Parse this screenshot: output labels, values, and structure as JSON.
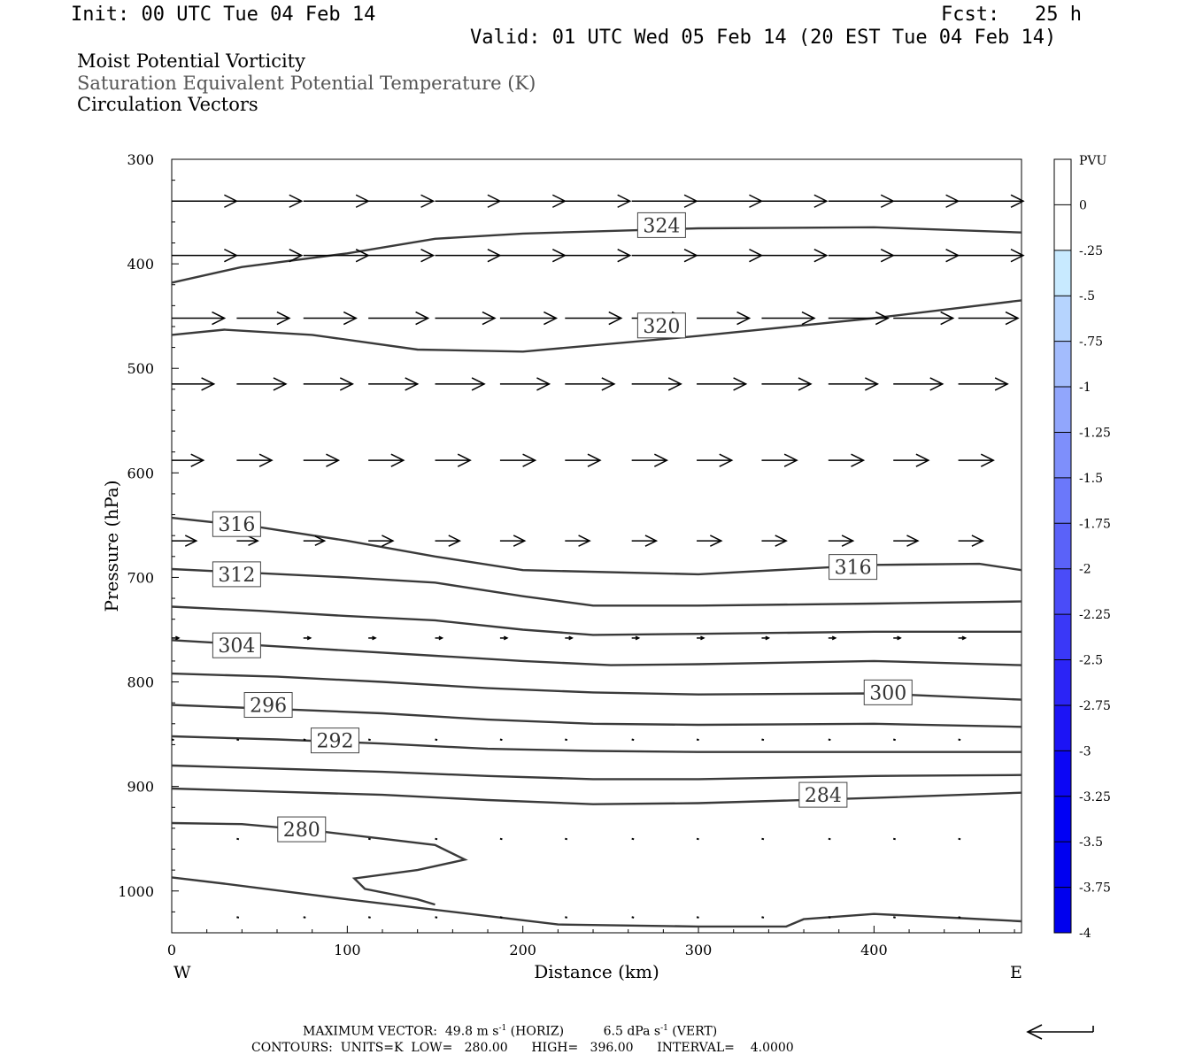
{
  "header": {
    "init": "Init: 00 UTC Tue 04 Feb 14",
    "fcst": "Fcst:   25 h",
    "valid": "Valid: 01 UTC Wed 05 Feb 14 (20 EST Tue 04 Feb 14)"
  },
  "titles": {
    "line1": "Moist Potential Vorticity",
    "line2": "Saturation Equivalent Potential Temperature (K)",
    "line3": "Circulation Vectors"
  },
  "footer": {
    "max_vector_label": "MAXIMUM VECTOR:",
    "max_vector_horiz": "49.8 m s",
    "horiz_tag": "(HORIZ)",
    "max_vector_vert": "6.5 dPa s",
    "vert_tag": "(VERT)",
    "exponent": "-1",
    "contours": "CONTOURS:  UNITS=K  LOW=   280.00      HIGH=   396.00      INTERVAL=    4.0000"
  },
  "colors": {
    "contour": "#3a3a3a",
    "vector": "#000000",
    "label_text": "#333333",
    "colorbar": [
      "#ffffff",
      "#ffffff",
      "#c8eaff",
      "#b6d4fe",
      "#a3bcfd",
      "#91a6fc",
      "#7e8ffb",
      "#6b78fa",
      "#5a62f9",
      "#4a4cf8",
      "#3a38f7",
      "#2b24f6",
      "#1c14f5",
      "#0c06f5",
      "#0000f5",
      "#0000f0",
      "#0000ee"
    ]
  },
  "chart_data": {
    "type": "cross-section",
    "title": "Moist Potential Vorticity",
    "xlabel": "Distance (km)",
    "ylabel": "Pressure (hPa)",
    "xlim": [
      0,
      484
    ],
    "ylim": [
      300,
      1040
    ],
    "y_inverted": true,
    "x_ticks": [
      "0",
      "100",
      "200",
      "300",
      "400"
    ],
    "x_tick_values": [
      0,
      100,
      200,
      300,
      400
    ],
    "y_ticks": [
      "300",
      "400",
      "500",
      "600",
      "700",
      "800",
      "900",
      "1000"
    ],
    "y_tick_values": [
      300,
      400,
      500,
      600,
      700,
      800,
      900,
      1000
    ],
    "x_end_labels": {
      "left": "W",
      "right": "E"
    },
    "colorbar": {
      "unit": "PVU",
      "labels": [
        "0",
        "-.25",
        "-.5",
        "-.75",
        "-1",
        "-1.25",
        "-1.5",
        "-1.75",
        "-2",
        "-2.25",
        "-2.5",
        "-2.75",
        "-3",
        "-3.25",
        "-3.5",
        "-3.75",
        "-4"
      ]
    },
    "contours": [
      {
        "level": 324,
        "label": "324",
        "label_at": [
          279,
          363
        ],
        "points": [
          [
            0,
            418
          ],
          [
            40,
            403
          ],
          [
            100,
            390
          ],
          [
            150,
            376
          ],
          [
            200,
            371
          ],
          [
            300,
            366
          ],
          [
            400,
            365
          ],
          [
            484,
            370
          ]
        ]
      },
      {
        "level": 320,
        "label": "320",
        "label_at": [
          279,
          459
        ],
        "points": [
          [
            0,
            468
          ],
          [
            30,
            463
          ],
          [
            80,
            468
          ],
          [
            140,
            482
          ],
          [
            200,
            484
          ],
          [
            260,
            475
          ],
          [
            300,
            469
          ],
          [
            400,
            452
          ],
          [
            484,
            435
          ]
        ]
      },
      {
        "level": 316,
        "label": "316",
        "label_at": [
          37,
          649
        ],
        "points": [
          [
            0,
            643
          ],
          [
            50,
            652
          ],
          [
            100,
            665
          ],
          [
            150,
            680
          ],
          [
            200,
            693
          ],
          [
            300,
            697
          ],
          [
            400,
            688
          ],
          [
            460,
            687
          ],
          [
            484,
            693
          ]
        ]
      },
      {
        "level": 316,
        "label": "316",
        "label_at": [
          388,
          690
        ],
        "points": []
      },
      {
        "level": 312,
        "label": "312",
        "label_at": [
          37,
          697
        ],
        "points": [
          [
            0,
            692
          ],
          [
            50,
            696
          ],
          [
            100,
            700
          ],
          [
            150,
            705
          ],
          [
            200,
            718
          ],
          [
            240,
            727
          ],
          [
            300,
            727
          ],
          [
            400,
            725
          ],
          [
            484,
            723
          ]
        ]
      },
      {
        "level": 308,
        "label": "",
        "label_at": null,
        "points": [
          [
            0,
            728
          ],
          [
            50,
            732
          ],
          [
            100,
            737
          ],
          [
            150,
            741
          ],
          [
            200,
            750
          ],
          [
            240,
            755
          ],
          [
            300,
            754
          ],
          [
            400,
            752
          ],
          [
            484,
            752
          ]
        ]
      },
      {
        "level": 304,
        "label": "304",
        "label_at": [
          37,
          765
        ],
        "points": [
          [
            0,
            760
          ],
          [
            50,
            765
          ],
          [
            100,
            770
          ],
          [
            150,
            775
          ],
          [
            200,
            780
          ],
          [
            250,
            784
          ],
          [
            300,
            783
          ],
          [
            400,
            780
          ],
          [
            484,
            784
          ]
        ]
      },
      {
        "level": 300,
        "label": "300",
        "label_at": [
          408,
          810
        ],
        "points": [
          [
            0,
            792
          ],
          [
            60,
            795
          ],
          [
            120,
            800
          ],
          [
            180,
            806
          ],
          [
            240,
            810
          ],
          [
            300,
            812
          ],
          [
            400,
            811
          ],
          [
            484,
            817
          ]
        ]
      },
      {
        "level": 296,
        "label": "296",
        "label_at": [
          55,
          822
        ],
        "points": [
          [
            0,
            822
          ],
          [
            60,
            826
          ],
          [
            120,
            830
          ],
          [
            180,
            836
          ],
          [
            240,
            840
          ],
          [
            300,
            841
          ],
          [
            400,
            840
          ],
          [
            484,
            843
          ]
        ]
      },
      {
        "level": 292,
        "label": "292",
        "label_at": [
          93,
          856
        ],
        "points": [
          [
            0,
            852
          ],
          [
            60,
            855
          ],
          [
            120,
            859
          ],
          [
            180,
            864
          ],
          [
            240,
            866
          ],
          [
            300,
            867
          ],
          [
            400,
            867
          ],
          [
            484,
            867
          ]
        ]
      },
      {
        "level": 288,
        "label": "",
        "label_at": null,
        "points": [
          [
            0,
            880
          ],
          [
            60,
            883
          ],
          [
            120,
            886
          ],
          [
            180,
            890
          ],
          [
            240,
            893
          ],
          [
            300,
            893
          ],
          [
            400,
            890
          ],
          [
            484,
            889
          ]
        ]
      },
      {
        "level": 284,
        "label": "284",
        "label_at": [
          371,
          908
        ],
        "points": [
          [
            0,
            902
          ],
          [
            60,
            905
          ],
          [
            120,
            908
          ],
          [
            180,
            913
          ],
          [
            240,
            917
          ],
          [
            300,
            916
          ],
          [
            400,
            911
          ],
          [
            484,
            906
          ]
        ]
      },
      {
        "level": 280,
        "label": "280",
        "label_at": [
          74,
          941
        ],
        "points": [
          [
            0,
            935
          ],
          [
            40,
            936
          ],
          [
            80,
            942
          ],
          [
            120,
            950
          ],
          [
            150,
            956
          ],
          [
            167,
            970
          ],
          [
            140,
            980
          ],
          [
            104,
            988
          ],
          [
            110,
            998
          ],
          [
            140,
            1008
          ],
          [
            150,
            1013
          ]
        ]
      },
      {
        "level": 276,
        "label": "",
        "label_at": null,
        "points": [
          [
            0,
            987
          ],
          [
            30,
            993
          ],
          [
            100,
            1008
          ],
          [
            180,
            1024
          ],
          [
            220,
            1032
          ],
          [
            300,
            1034
          ],
          [
            350,
            1034
          ],
          [
            360,
            1027
          ],
          [
            400,
            1022
          ],
          [
            450,
            1026
          ],
          [
            484,
            1029
          ]
        ]
      }
    ],
    "vector_rows": [
      {
        "pressure": 340,
        "vectors": [
          [
            0,
            37
          ],
          [
            37,
            37
          ],
          [
            75,
            37
          ],
          [
            112,
            37
          ],
          [
            150,
            37
          ],
          [
            187,
            37
          ],
          [
            224,
            37
          ],
          [
            262,
            37
          ],
          [
            299,
            37
          ],
          [
            336,
            37
          ],
          [
            374,
            37
          ],
          [
            411,
            37
          ],
          [
            448,
            37
          ]
        ]
      },
      {
        "pressure": 392,
        "vectors": [
          [
            0,
            37
          ],
          [
            37,
            37
          ],
          [
            75,
            37
          ],
          [
            112,
            37
          ],
          [
            150,
            37
          ],
          [
            187,
            37
          ],
          [
            224,
            37
          ],
          [
            262,
            37
          ],
          [
            299,
            37
          ],
          [
            336,
            37
          ],
          [
            374,
            37
          ],
          [
            411,
            37
          ],
          [
            448,
            37
          ]
        ]
      },
      {
        "pressure": 452,
        "vectors": [
          [
            0,
            30
          ],
          [
            37,
            30
          ],
          [
            75,
            30
          ],
          [
            112,
            34
          ],
          [
            150,
            34
          ],
          [
            187,
            32
          ],
          [
            224,
            32
          ],
          [
            262,
            30
          ],
          [
            299,
            30
          ],
          [
            336,
            30
          ],
          [
            374,
            34
          ],
          [
            411,
            34
          ],
          [
            448,
            34
          ]
        ]
      },
      {
        "pressure": 515,
        "vectors": [
          [
            0,
            24
          ],
          [
            37,
            28
          ],
          [
            75,
            28
          ],
          [
            112,
            28
          ],
          [
            150,
            28
          ],
          [
            187,
            28
          ],
          [
            224,
            28
          ],
          [
            262,
            28
          ],
          [
            299,
            28
          ],
          [
            336,
            28
          ],
          [
            374,
            28
          ],
          [
            411,
            28
          ],
          [
            448,
            28
          ]
        ]
      },
      {
        "pressure": 588,
        "vectors": [
          [
            0,
            18
          ],
          [
            37,
            20
          ],
          [
            75,
            20
          ],
          [
            112,
            20
          ],
          [
            150,
            20
          ],
          [
            187,
            20
          ],
          [
            224,
            20
          ],
          [
            262,
            20
          ],
          [
            299,
            20
          ],
          [
            336,
            20
          ],
          [
            374,
            20
          ],
          [
            411,
            20
          ],
          [
            448,
            20
          ]
        ]
      },
      {
        "pressure": 665,
        "vectors": [
          [
            0,
            14
          ],
          [
            37,
            12
          ],
          [
            75,
            12
          ],
          [
            112,
            14
          ],
          [
            150,
            14
          ],
          [
            187,
            14
          ],
          [
            224,
            14
          ],
          [
            262,
            14
          ],
          [
            299,
            14
          ],
          [
            336,
            14
          ],
          [
            374,
            14
          ],
          [
            411,
            14
          ],
          [
            448,
            14
          ]
        ]
      },
      {
        "pressure": 758,
        "vectors": [
          [
            0,
            4
          ],
          [
            37,
            4
          ],
          [
            75,
            4
          ],
          [
            112,
            4
          ],
          [
            150,
            4
          ],
          [
            187,
            4
          ],
          [
            224,
            4
          ],
          [
            262,
            4
          ],
          [
            299,
            4
          ],
          [
            336,
            4
          ],
          [
            374,
            4
          ],
          [
            411,
            4
          ],
          [
            448,
            4
          ]
        ]
      },
      {
        "pressure": 855,
        "vectors": [
          [
            0,
            1
          ],
          [
            37,
            1
          ],
          [
            75,
            1
          ],
          [
            112,
            1
          ],
          [
            150,
            1
          ],
          [
            187,
            1
          ],
          [
            224,
            1
          ],
          [
            262,
            1
          ],
          [
            299,
            1
          ],
          [
            336,
            1
          ],
          [
            374,
            1
          ],
          [
            411,
            1
          ],
          [
            448,
            1
          ]
        ]
      },
      {
        "pressure": 950,
        "vectors": [
          [
            37,
            1
          ],
          [
            75,
            1
          ],
          [
            112,
            1
          ],
          [
            150,
            1
          ],
          [
            187,
            1
          ],
          [
            224,
            1
          ],
          [
            262,
            1
          ],
          [
            299,
            1
          ],
          [
            336,
            1
          ],
          [
            374,
            1
          ],
          [
            411,
            1
          ],
          [
            448,
            1
          ]
        ]
      },
      {
        "pressure": 1025,
        "vectors": [
          [
            37,
            1
          ],
          [
            75,
            1
          ],
          [
            112,
            1
          ],
          [
            150,
            1
          ],
          [
            187,
            1
          ],
          [
            224,
            1
          ],
          [
            262,
            1
          ],
          [
            299,
            1
          ],
          [
            336,
            1
          ],
          [
            374,
            1
          ],
          [
            411,
            1
          ],
          [
            448,
            1
          ]
        ]
      }
    ]
  }
}
